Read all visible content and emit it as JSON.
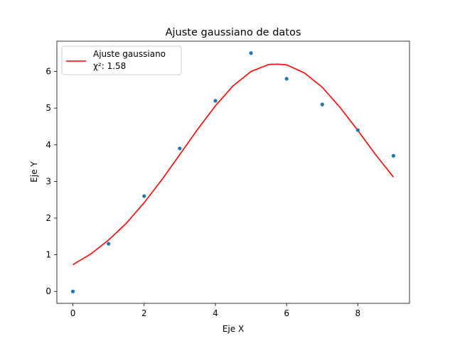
{
  "chart_data": {
    "type": "scatter",
    "title": "Ajuste gaussiano de datos",
    "xlabel": "Eje X",
    "ylabel": "Eje Y",
    "xlim": [
      -0.45,
      9.45
    ],
    "ylim": [
      -0.325,
      6.825
    ],
    "xticks": [
      0,
      2,
      4,
      6,
      8
    ],
    "yticks": [
      0,
      1,
      2,
      3,
      4,
      5,
      6
    ],
    "grid": false,
    "legend_position": "top-left",
    "points": {
      "x": [
        0,
        1,
        2,
        3,
        4,
        5,
        6,
        7,
        8,
        9
      ],
      "y": [
        0.0,
        1.3,
        2.6,
        3.9,
        5.2,
        6.5,
        5.8,
        5.1,
        4.4,
        3.7
      ],
      "color": "#1f77b4"
    },
    "fit": {
      "label": "Ajuste gaussiano",
      "chi2_label": "χ²: 1.58",
      "color": "#ff0000",
      "x": [
        0,
        0.5,
        1,
        1.5,
        2,
        2.5,
        3,
        3.5,
        4,
        4.5,
        5,
        5.5,
        5.75,
        6,
        6.5,
        7,
        7.5,
        8,
        8.5,
        9
      ],
      "y": [
        0.73,
        1.02,
        1.4,
        1.86,
        2.42,
        3.05,
        3.73,
        4.42,
        5.06,
        5.61,
        6.0,
        6.19,
        6.2,
        6.18,
        5.96,
        5.57,
        5.02,
        4.39,
        3.73,
        3.12
      ]
    }
  }
}
